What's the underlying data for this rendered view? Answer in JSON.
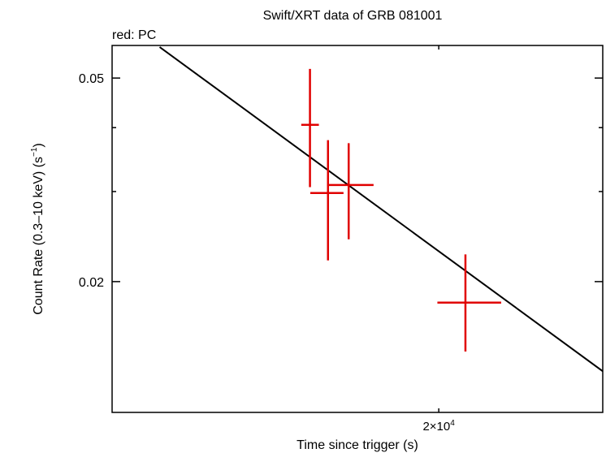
{
  "chart_data": {
    "type": "scatter",
    "title": "Swift/XRT data of GRB 081001",
    "subtitle": "red: PC",
    "xlabel": "Time since trigger (s)",
    "ylabel_main": "Count Rate (0.3–10 keV) (s",
    "ylabel_sup": "−1",
    "ylabel_close": ")",
    "xscale": "log",
    "yscale": "log",
    "xlim": [
      11000,
      27000
    ],
    "ylim": [
      0.0111,
      0.0579
    ],
    "x_tick_labels": [
      {
        "value": 20000,
        "base": "2×10",
        "exp": "4"
      }
    ],
    "x_minor_ticks": [
      20000
    ],
    "y_major_ticks": [
      0.02,
      0.05
    ],
    "y_tick_labels": [
      {
        "value": 0.02,
        "text": "0.02"
      },
      {
        "value": 0.05,
        "text": "0.05"
      }
    ],
    "y_minor_ticks": [
      0.03,
      0.04
    ],
    "series": [
      {
        "color": "#e00000",
        "points": [
          {
            "x": 15800,
            "y": 0.0405,
            "xerr": [
              15550,
              16060
            ],
            "yerr": [
              0.0306,
              0.0521
            ]
          },
          {
            "x": 16330,
            "y": 0.0298,
            "xerr": [
              15810,
              16800
            ],
            "yerr": [
              0.022,
              0.0378
            ]
          },
          {
            "x": 16960,
            "y": 0.0309,
            "xerr": [
              16300,
              17750
            ],
            "yerr": [
              0.0242,
              0.0373
            ]
          },
          {
            "x": 21000,
            "y": 0.0182,
            "xerr": [
              19950,
              22420
            ],
            "yerr": [
              0.0146,
              0.0226
            ]
          }
        ]
      }
    ],
    "fit_line": {
      "color": "#000000",
      "x": [
        12000,
        27000
      ],
      "y": [
        0.0575,
        0.01336
      ]
    },
    "grid": false,
    "legend": "none"
  }
}
